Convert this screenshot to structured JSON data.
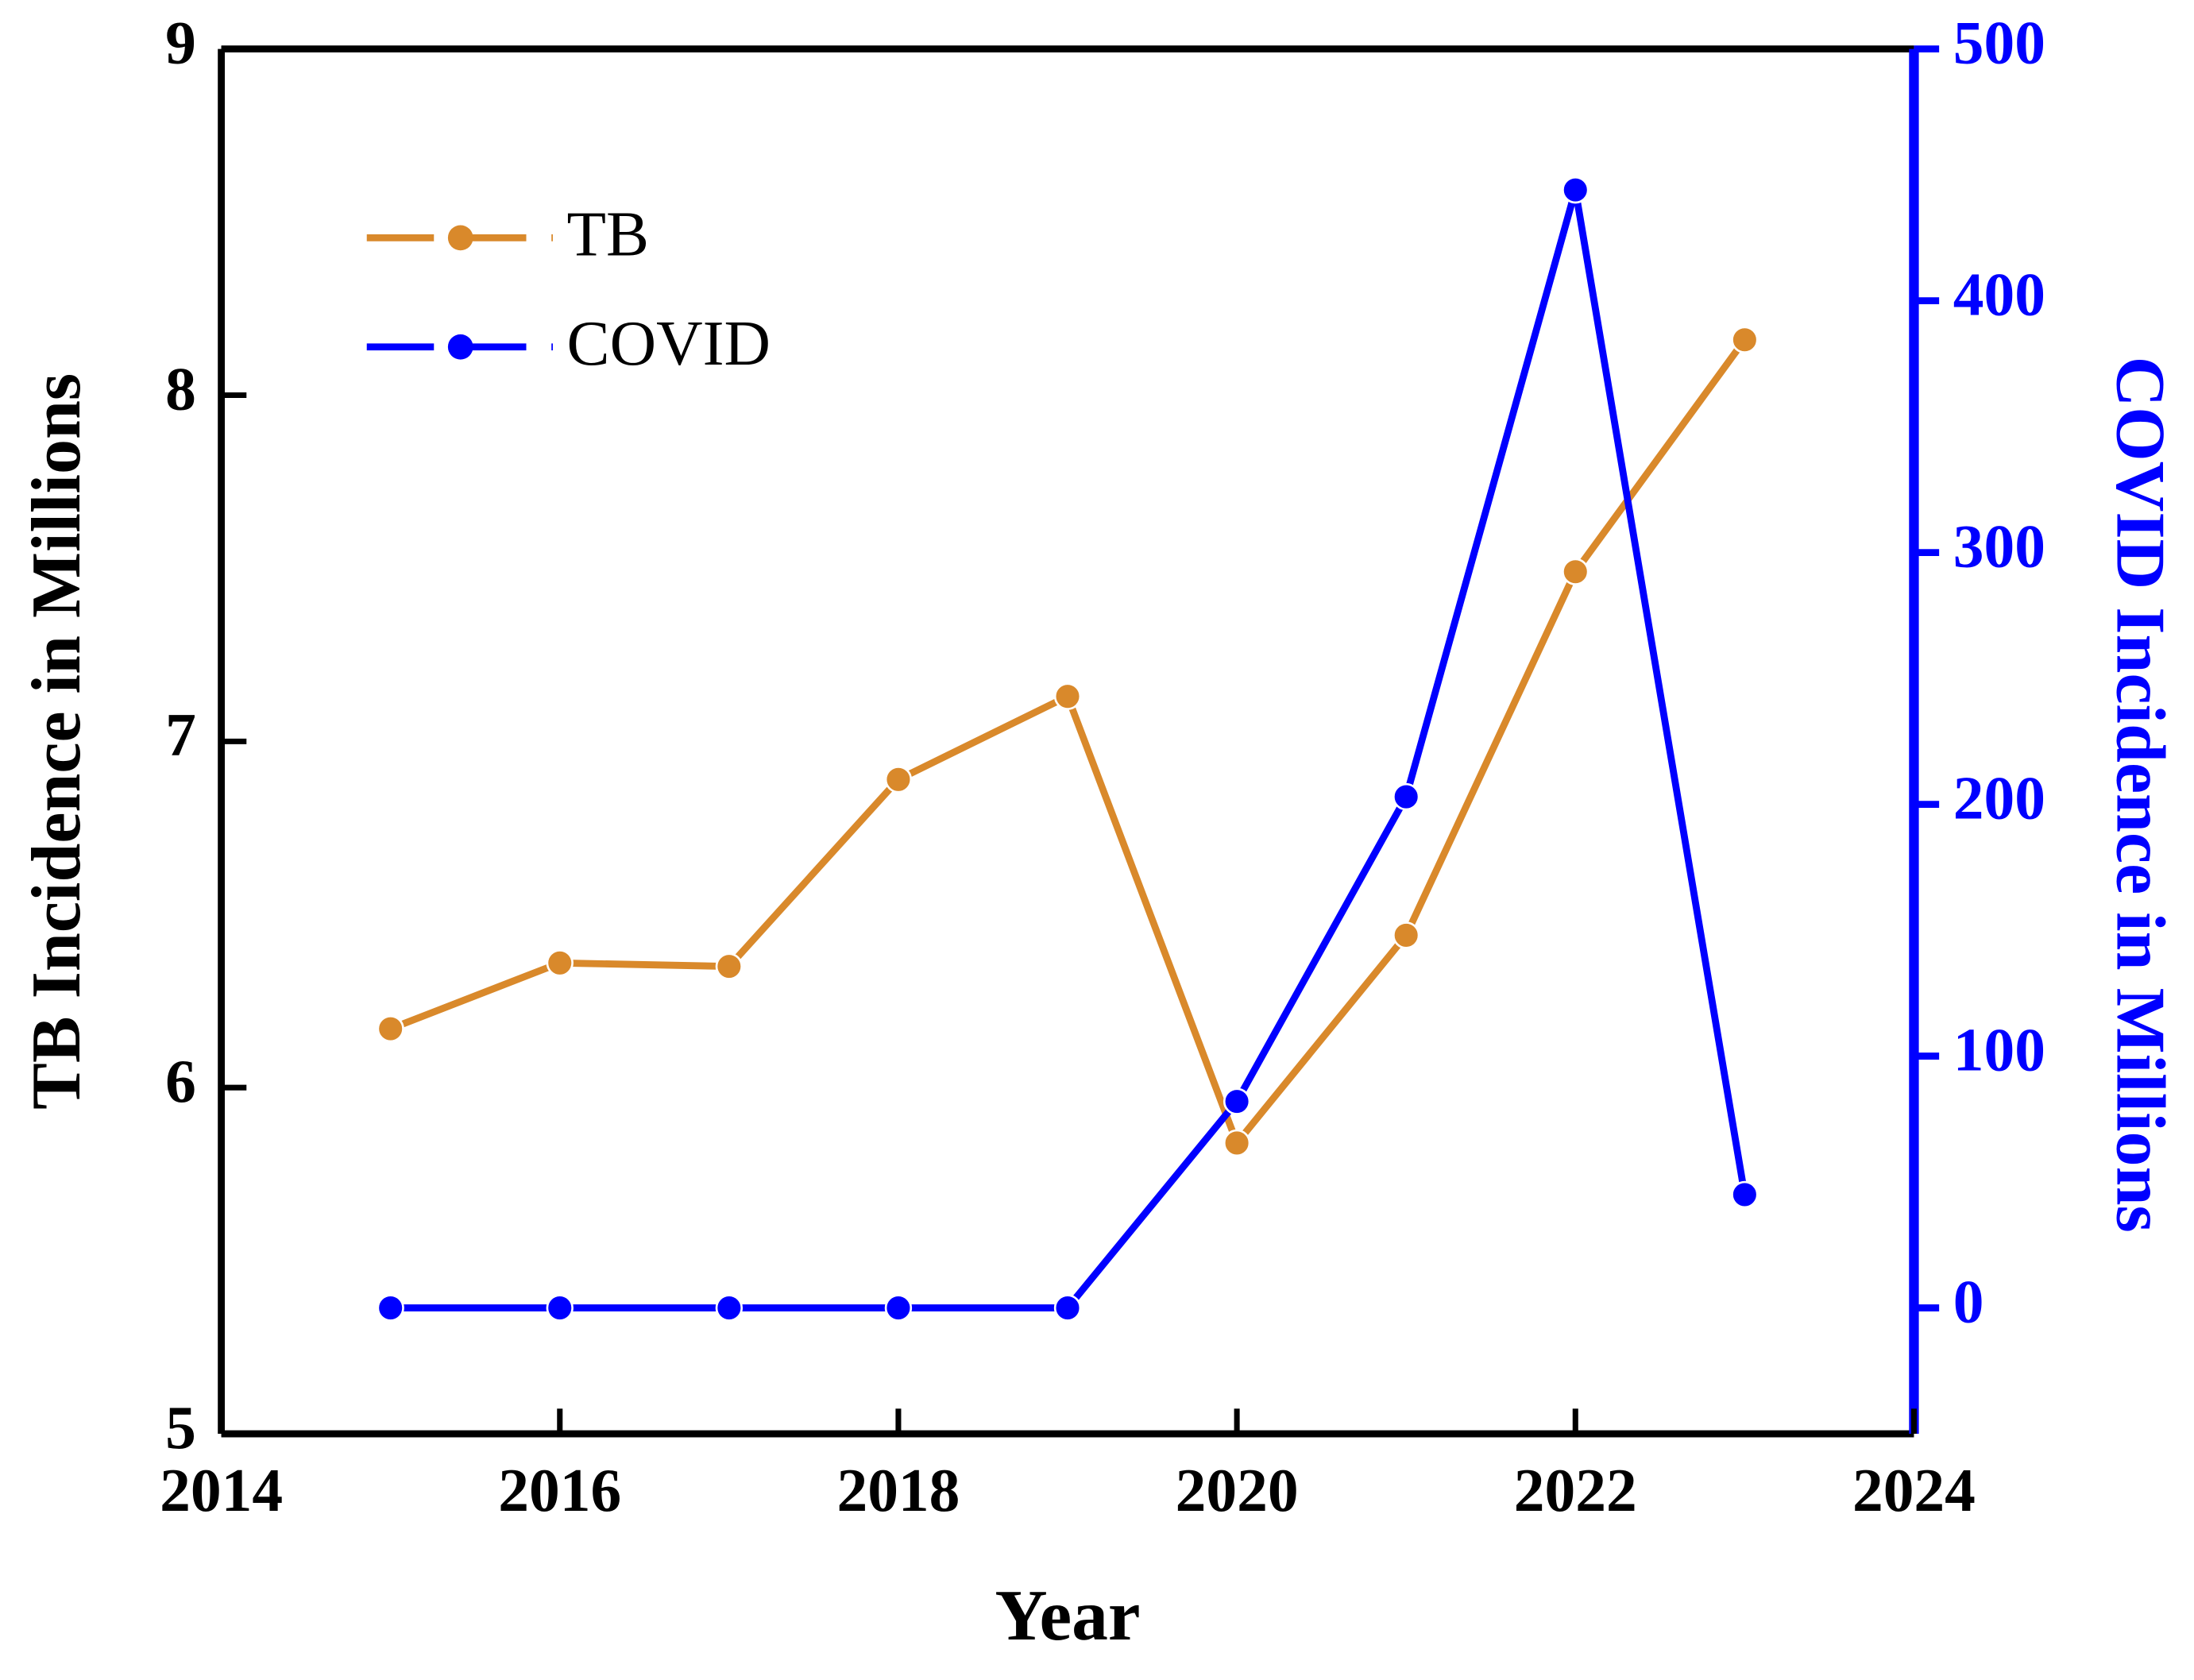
{
  "chart_data": {
    "type": "line",
    "x_label": "Year",
    "y_label": "TB Incidence in Millions",
    "y2_label": "COVID Incidence in Millions",
    "x": [
      2015,
      2016,
      2017,
      2018,
      2019,
      2020,
      2021,
      2022,
      2023
    ],
    "series": [
      {
        "name": "TB",
        "color": "#d9892b",
        "values": [
          6.17,
          6.36,
          6.35,
          6.89,
          7.13,
          5.84,
          6.44,
          7.49,
          8.16
        ]
      },
      {
        "name": "COVID",
        "color": "#0000ff",
        "axis": "y2",
        "values": [
          0,
          0,
          0,
          0,
          0,
          82,
          203,
          444,
          45
        ]
      }
    ],
    "xlim": [
      2014,
      2024
    ],
    "xticks": [
      2014,
      2016,
      2018,
      2020,
      2022,
      2024
    ],
    "ylim": [
      5,
      9
    ],
    "yticks": [
      5,
      6,
      7,
      8,
      9
    ],
    "y2lim": [
      -50,
      500
    ],
    "y2ticks": [
      0,
      100,
      200,
      300,
      400,
      500
    ],
    "y2_color": "#0000ff",
    "legend": "upper-left"
  }
}
